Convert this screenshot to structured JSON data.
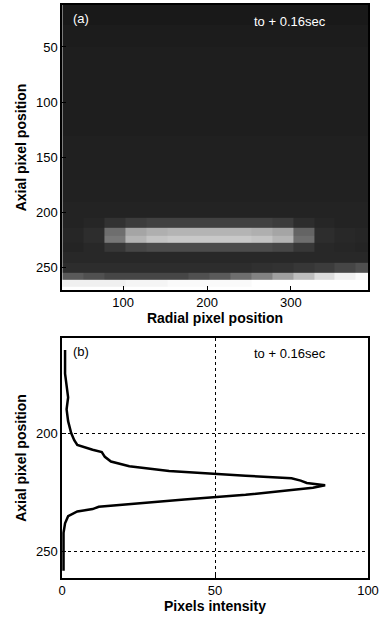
{
  "chart_data": [
    {
      "type": "heatmap",
      "annotations": [
        "(a)",
        "to + 0.16sec"
      ],
      "x_label": "Radial pixel position",
      "y_label": "Axial pixel position",
      "color": "gray",
      "grid": true,
      "xlim": [
        27,
        392
      ],
      "ylim": [
        270,
        12
      ],
      "xticks": [
        100,
        200,
        300
      ],
      "yticks": [
        50,
        100,
        150,
        200,
        250
      ],
      "zlim": [
        0,
        255
      ],
      "x": [
        40,
        65,
        90,
        115,
        140,
        165,
        190,
        215,
        240,
        265,
        290,
        315,
        340,
        365,
        390
      ],
      "y": [
        20,
        40,
        60,
        80,
        100,
        120,
        140,
        160,
        180,
        200,
        210,
        218,
        224,
        230,
        240,
        250,
        258,
        264
      ],
      "z": [
        [
          25,
          25,
          25,
          25,
          25,
          25,
          25,
          25,
          25,
          25,
          25,
          25,
          25,
          25,
          25
        ],
        [
          28,
          28,
          28,
          28,
          28,
          28,
          28,
          28,
          28,
          28,
          28,
          28,
          28,
          28,
          28
        ],
        [
          30,
          30,
          30,
          30,
          30,
          30,
          30,
          30,
          30,
          30,
          30,
          30,
          30,
          30,
          30
        ],
        [
          30,
          30,
          30,
          30,
          30,
          30,
          30,
          30,
          30,
          30,
          30,
          30,
          30,
          30,
          30
        ],
        [
          30,
          30,
          30,
          30,
          30,
          30,
          30,
          30,
          30,
          30,
          30,
          30,
          30,
          30,
          30
        ],
        [
          30,
          30,
          30,
          30,
          30,
          30,
          30,
          30,
          30,
          30,
          30,
          30,
          30,
          30,
          30
        ],
        [
          32,
          32,
          32,
          32,
          32,
          32,
          32,
          32,
          32,
          32,
          32,
          32,
          32,
          32,
          32
        ],
        [
          32,
          32,
          32,
          32,
          32,
          32,
          32,
          32,
          32,
          32,
          32,
          32,
          32,
          32,
          32
        ],
        [
          33,
          33,
          33,
          33,
          33,
          33,
          33,
          33,
          33,
          33,
          33,
          33,
          33,
          33,
          33
        ],
        [
          35,
          35,
          35,
          35,
          35,
          35,
          35,
          35,
          35,
          35,
          35,
          35,
          35,
          35,
          35
        ],
        [
          35,
          38,
          50,
          60,
          65,
          65,
          65,
          65,
          65,
          65,
          60,
          45,
          38,
          35,
          35
        ],
        [
          38,
          45,
          110,
          165,
          175,
          180,
          180,
          180,
          180,
          175,
          165,
          100,
          45,
          40,
          38
        ],
        [
          38,
          45,
          120,
          180,
          195,
          200,
          200,
          200,
          200,
          195,
          180,
          110,
          45,
          40,
          38
        ],
        [
          36,
          40,
          55,
          70,
          75,
          75,
          75,
          75,
          75,
          75,
          70,
          55,
          40,
          38,
          36
        ],
        [
          40,
          40,
          40,
          40,
          40,
          40,
          40,
          40,
          40,
          40,
          40,
          40,
          40,
          40,
          40
        ],
        [
          45,
          45,
          45,
          45,
          45,
          45,
          45,
          45,
          45,
          48,
          50,
          55,
          60,
          70,
          80
        ],
        [
          90,
          80,
          70,
          70,
          70,
          70,
          80,
          90,
          110,
          130,
          160,
          190,
          220,
          240,
          250
        ],
        [
          240,
          240,
          240,
          245,
          245,
          250,
          250,
          250,
          250,
          255,
          255,
          255,
          255,
          255,
          255
        ]
      ]
    },
    {
      "type": "line",
      "annotations": [
        "(b)",
        "to + 0.16sec"
      ],
      "x_label": "Pixels intensity",
      "y_label": "Axial pixel position",
      "color": "#000000",
      "grid": true,
      "xlim": [
        0,
        100
      ],
      "ylim": [
        261,
        160
      ],
      "xticks": [
        0,
        50,
        100
      ],
      "yticks": [
        200,
        250
      ],
      "x": [
        1,
        1,
        2,
        1.5,
        2,
        3,
        4,
        5,
        10,
        13,
        14,
        16,
        22,
        35,
        60,
        75,
        78,
        80,
        86,
        82,
        75,
        60,
        40,
        22,
        12,
        10,
        5,
        2,
        1,
        0.5,
        0.5,
        0.5
      ],
      "y": [
        165,
        175,
        185,
        190,
        195,
        200,
        203,
        205,
        207,
        208,
        210,
        212,
        214,
        216,
        218,
        219,
        220,
        221,
        222,
        223,
        224,
        226,
        228,
        230,
        231,
        232,
        233,
        235,
        238,
        242,
        250,
        258
      ]
    }
  ]
}
